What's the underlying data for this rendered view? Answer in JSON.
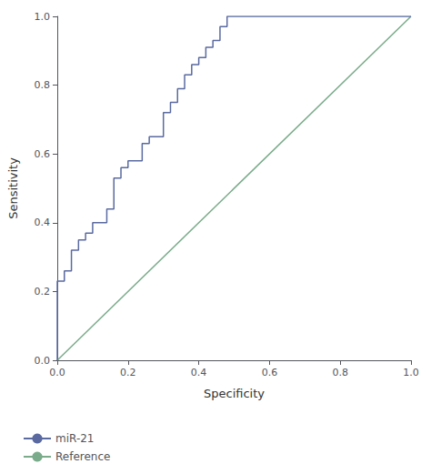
{
  "chart_data": {
    "type": "line",
    "xlabel": "Specificity",
    "ylabel": "Sensitivity",
    "xlim": [
      0.0,
      1.0
    ],
    "ylim": [
      0.0,
      1.0
    ],
    "xticks": [
      {
        "value": 0.0,
        "label": "0.0"
      },
      0.2,
      0.4,
      0.6,
      0.8,
      {
        "value": 1.0,
        "label": "1.0"
      }
    ],
    "yticks": [
      {
        "value": 0.0,
        "label": "0.0"
      },
      0.2,
      0.4,
      0.6,
      0.8,
      {
        "value": 1.0,
        "label": "1.0"
      }
    ],
    "grid": false,
    "legend": "lower left",
    "series": [
      {
        "name": "miR-21",
        "color": "#5a6aa0",
        "x": [
          0.0,
          0.0,
          0.02,
          0.02,
          0.04,
          0.04,
          0.06,
          0.06,
          0.08,
          0.08,
          0.1,
          0.1,
          0.14,
          0.14,
          0.16,
          0.16,
          0.18,
          0.18,
          0.2,
          0.2,
          0.24,
          0.24,
          0.26,
          0.26,
          0.3,
          0.3,
          0.32,
          0.32,
          0.34,
          0.34,
          0.36,
          0.36,
          0.38,
          0.38,
          0.4,
          0.4,
          0.42,
          0.42,
          0.44,
          0.44,
          0.46,
          0.46,
          0.48,
          0.48,
          0.5,
          0.5,
          1.0
        ],
        "values": [
          0.0,
          0.23,
          0.23,
          0.26,
          0.26,
          0.32,
          0.32,
          0.35,
          0.35,
          0.37,
          0.37,
          0.4,
          0.4,
          0.44,
          0.44,
          0.53,
          0.53,
          0.56,
          0.56,
          0.58,
          0.58,
          0.63,
          0.63,
          0.65,
          0.65,
          0.72,
          0.72,
          0.75,
          0.75,
          0.79,
          0.79,
          0.83,
          0.83,
          0.86,
          0.86,
          0.88,
          0.88,
          0.91,
          0.91,
          0.93,
          0.93,
          0.97,
          0.97,
          1.0,
          1.0,
          1.0,
          1.0
        ]
      },
      {
        "name": "Reference",
        "color": "#7aab8a",
        "x": [
          0.0,
          1.0
        ],
        "values": [
          0.0,
          1.0
        ]
      }
    ]
  }
}
